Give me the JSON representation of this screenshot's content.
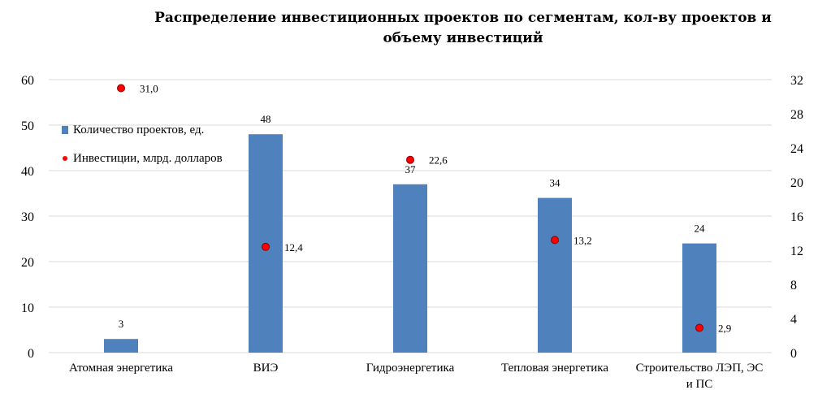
{
  "chart_data": {
    "type": "bar",
    "title": "Распределение инвестиционных проектов по сегментам, кол-ву проектов и объему инвестиций",
    "title_lines": [
      "Распределение инвестиционных  проектов  по сегментам, кол-ву проектов  и",
      "объему инвестиций"
    ],
    "categories": [
      "Атомная  энергетика",
      "ВИЭ",
      "Гидроэнергетика",
      "Тепловая  энергетика",
      "Строительство  ЛЭП, ЭС и ПС"
    ],
    "category_lines": [
      [
        "Атомная  энергетика"
      ],
      [
        "ВИЭ"
      ],
      [
        "Гидроэнергетика"
      ],
      [
        "Тепловая  энергетика"
      ],
      [
        "Строительство  ЛЭП, ЭС",
        "и ПС"
      ]
    ],
    "series": [
      {
        "name": "Количество проектов, ед.",
        "type": "bar",
        "axis": "left",
        "color": "#4f81bd",
        "values": [
          3,
          48,
          37,
          34,
          24
        ],
        "labels": [
          "3",
          "48",
          "37",
          "34",
          "24"
        ]
      },
      {
        "name": "Инвестиции,  млрд. долларов",
        "type": "scatter",
        "axis": "right",
        "color": "#ff0000",
        "values": [
          31.0,
          12.4,
          22.6,
          13.2,
          2.9
        ],
        "labels": [
          "31,0",
          "12,4",
          "22,6",
          "13,2",
          "2,9"
        ]
      }
    ],
    "y_left": {
      "min": 0,
      "max": 60,
      "ticks": [
        "0",
        "10",
        "20",
        "30",
        "40",
        "50",
        "60"
      ]
    },
    "y_right": {
      "min": 0,
      "max": 32,
      "ticks": [
        "0",
        "4",
        "8",
        "12",
        "16",
        "20",
        "24",
        "28",
        "32"
      ]
    },
    "grid": true,
    "legend_position": "top-left",
    "legend": [
      {
        "label": "Количество проектов, ед.",
        "color": "#4f81bd",
        "shape": "square"
      },
      {
        "label": "Инвестиции,  млрд. долларов",
        "color": "#ff0000",
        "shape": "dot"
      }
    ],
    "grid_color": "#d9d9d9"
  }
}
